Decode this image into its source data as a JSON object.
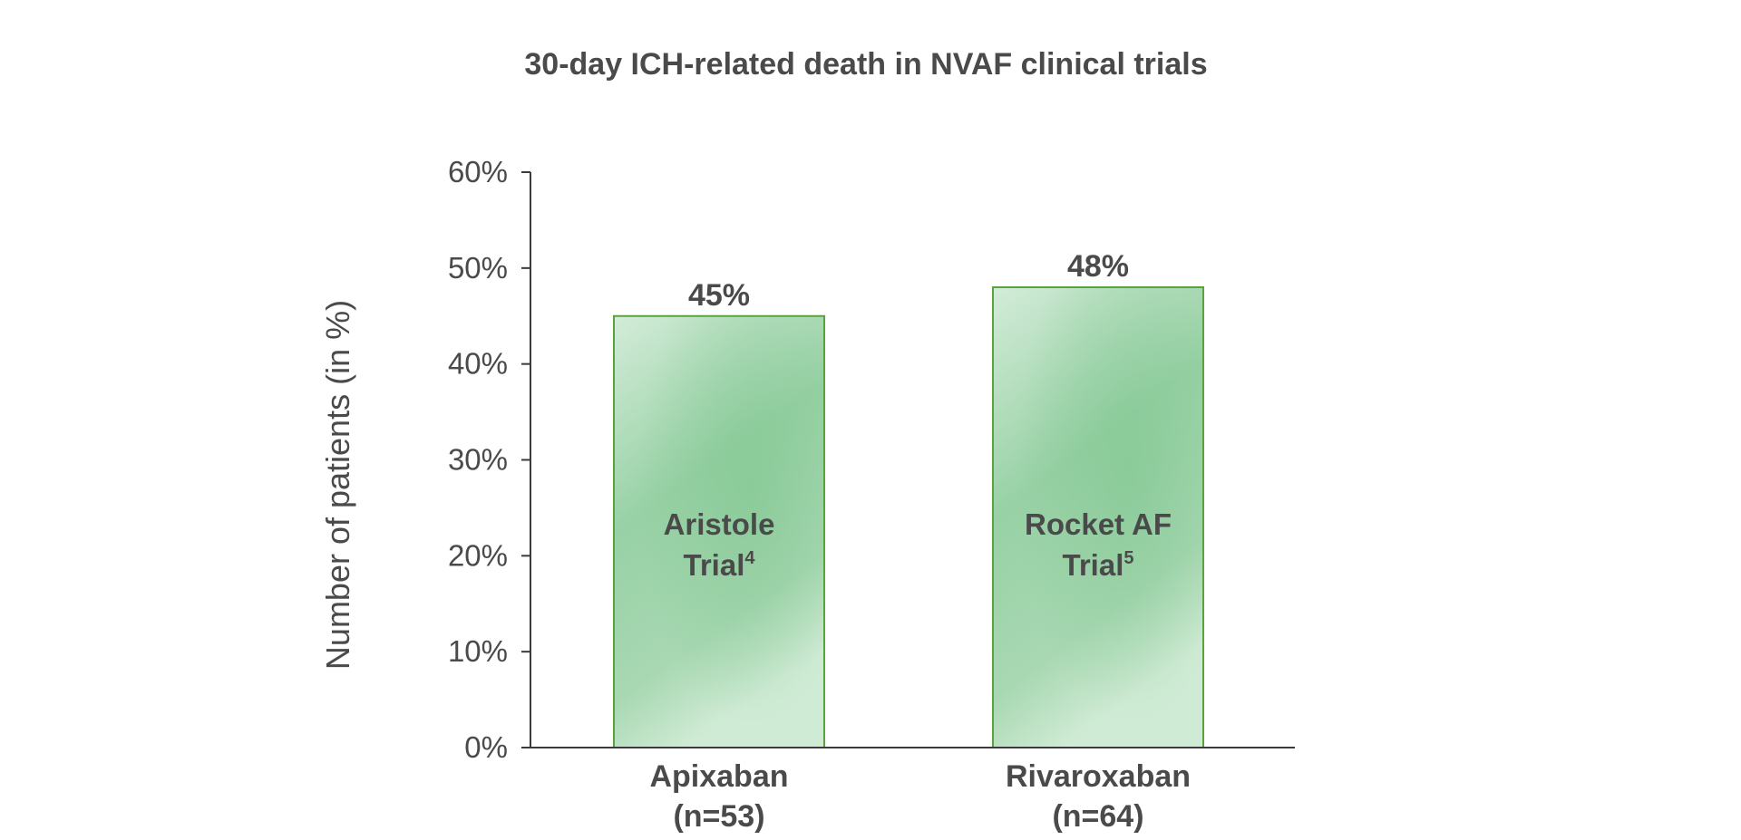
{
  "chart_data": {
    "type": "bar",
    "title": "30-day ICH-related death in NVAF clinical trials",
    "ylabel": "Number of patients (in %)",
    "xlabel": "",
    "ylim": [
      0,
      60
    ],
    "yticks": [
      0,
      10,
      20,
      30,
      40,
      50,
      60
    ],
    "ytick_labels": [
      "0%",
      "10%",
      "20%",
      "30%",
      "40%",
      "50%",
      "60%"
    ],
    "categories": [
      "Apixaban (n=53)",
      "Rivaroxaban (n=64)"
    ],
    "values": [
      45,
      48
    ],
    "value_labels": [
      "45%",
      "48%"
    ],
    "bars": [
      {
        "category_line1": "Apixaban",
        "category_line2": "(n=53)",
        "value": 45,
        "value_label": "45%",
        "inner_line1": "Aristole",
        "inner_line2": "Trial",
        "inner_sup": "4"
      },
      {
        "category_line1": "Rivaroxaban",
        "category_line2": "(n=64)",
        "value": 48,
        "value_label": "48%",
        "inner_line1": "Rocket AF",
        "inner_line2": "Trial",
        "inner_sup": "5"
      }
    ],
    "grid": false,
    "legend": "none",
    "bar_fill_color": "#9dd3a8",
    "bar_fill_light": "#d6eedb",
    "bar_border_color": "#5aa33c",
    "text_color": "#4a4a4a"
  }
}
